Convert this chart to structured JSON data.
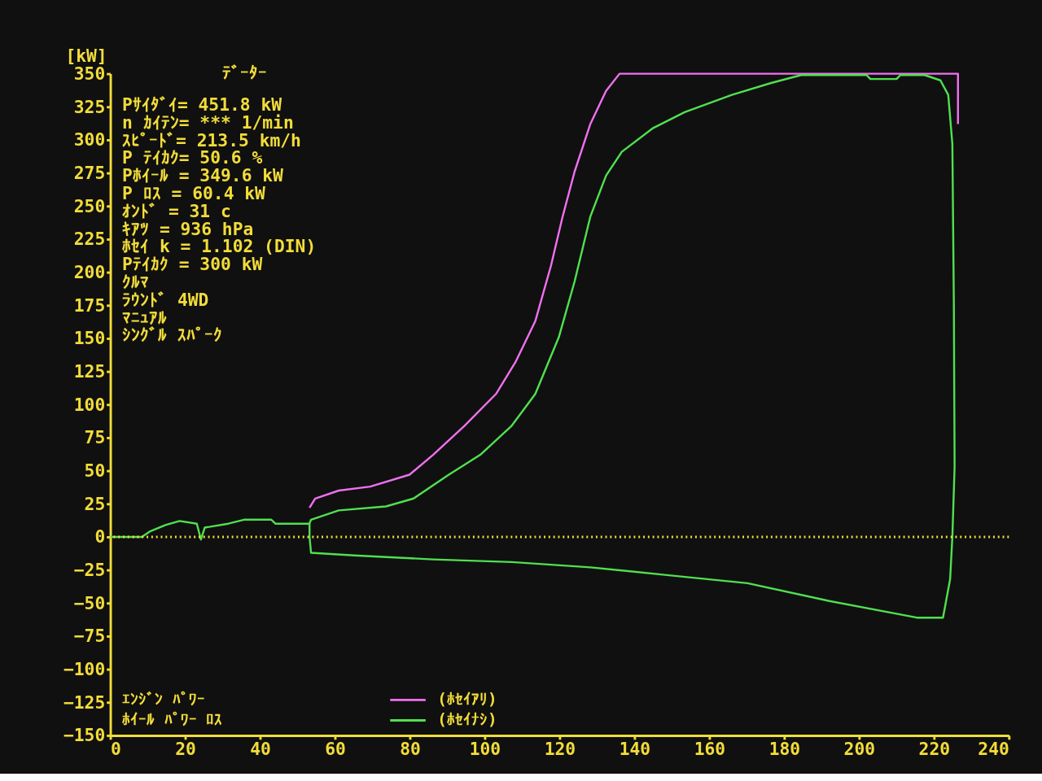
{
  "chart_data": {
    "type": "line",
    "ylabel": "[kW]",
    "xlim": [
      0,
      240
    ],
    "xticks": [
      0,
      20,
      40,
      60,
      80,
      100,
      120,
      140,
      160,
      180,
      200,
      220,
      240
    ],
    "ylim": [
      -150,
      350
    ],
    "yticks": [
      -150,
      -125,
      -100,
      -75,
      -50,
      -25,
      0,
      25,
      50,
      75,
      100,
      125,
      150,
      175,
      200,
      225,
      250,
      275,
      300,
      325,
      350
    ],
    "grid": false,
    "legend": "bottom left",
    "marker": "none",
    "line_style": "solid",
    "ref_lines": [
      {
        "axis": "y",
        "value": 0,
        "color": "#f2dc3a",
        "line_style": "dotted"
      }
    ],
    "series": [
      {
        "name": "(ﾎｾｲｱﾘ)",
        "color": "#f070f0",
        "x": [
          53.2,
          54.7,
          61,
          69.4,
          79.9,
          86.2,
          94.6,
          103,
          108.2,
          113.5,
          117.7,
          120.8,
          124,
          128.2,
          132.4,
          136,
          226.4,
          226.4
        ],
        "values": [
          22,
          29,
          35,
          38,
          47,
          62,
          84,
          108,
          132,
          163,
          205,
          242,
          276,
          312,
          337,
          350,
          350,
          312
        ]
      },
      {
        "name": "(ﾎｾｲﾅｼ)",
        "color": "#50e050",
        "x": [
          0,
          8.4,
          10.5,
          14.7,
          18.5,
          23.1,
          24.2,
          25.2,
          31.5,
          35.7,
          43,
          44.1,
          53.2,
          53.6,
          61,
          73.6,
          81,
          90.4,
          98.8,
          107.2,
          113.5,
          119.8,
          124,
          128.2,
          132.4,
          136.6,
          145,
          153.4,
          166,
          176.5,
          184.5,
          202,
          203,
          210,
          211,
          217.5,
          221.7,
          223.8,
          224.9,
          225.3,
          225.5,
          224.9,
          224.3,
          222.4,
          215.4,
          191.3,
          170.2,
          149.2,
          128.2,
          107.2,
          86.2,
          65.2,
          53.6,
          53.2,
          53.2
        ],
        "values": [
          0,
          0,
          4,
          9,
          12,
          10,
          -2,
          7,
          10,
          13,
          13,
          10,
          10,
          13,
          20,
          23,
          29,
          47,
          62,
          84,
          108,
          151,
          193,
          242,
          273,
          291,
          309,
          321,
          334,
          343,
          349,
          349,
          346,
          346,
          349,
          349,
          345,
          334,
          297,
          175,
          53,
          0,
          -32,
          -61,
          -61,
          -48,
          -35,
          -29,
          -23,
          -19,
          -17,
          -14,
          -12,
          0,
          10
        ]
      }
    ],
    "annotations": [
      "ﾃﾞｰﾀｰ",
      "Pｻｲﾀﾞｲ= 451.8 kW",
      "n ｶｲﾃﾝ=  ***  1/min",
      "ｽﾋﾟｰﾄﾞ= 213.5 km/h",
      "P ﾃｲｶｸ=  50.6 %",
      "Pﾎｲｰﾙ = 349.6 kW",
      "P ﾛｽ  =  60.4 kW",
      "ｵﾝﾄﾞ  =  31   c",
      "ｷｱﾂ   =  936  hPa",
      "ﾎｾｲ k = 1.102 (DIN)",
      "Pﾃｲｶｸ = 300   kW",
      "ｸﾙﾏ",
      "ﾗｳﾝﾄﾞ  4WD",
      "ﾏﾆｭｱﾙ",
      "ｼﾝｸﾞﾙ ｽﾊﾟｰｸ",
      "ｴﾝｼﾞﾝ ﾊﾟﾜｰ",
      "ﾎｲｰﾙ ﾊﾟﾜｰ ﾛｽ"
    ]
  }
}
